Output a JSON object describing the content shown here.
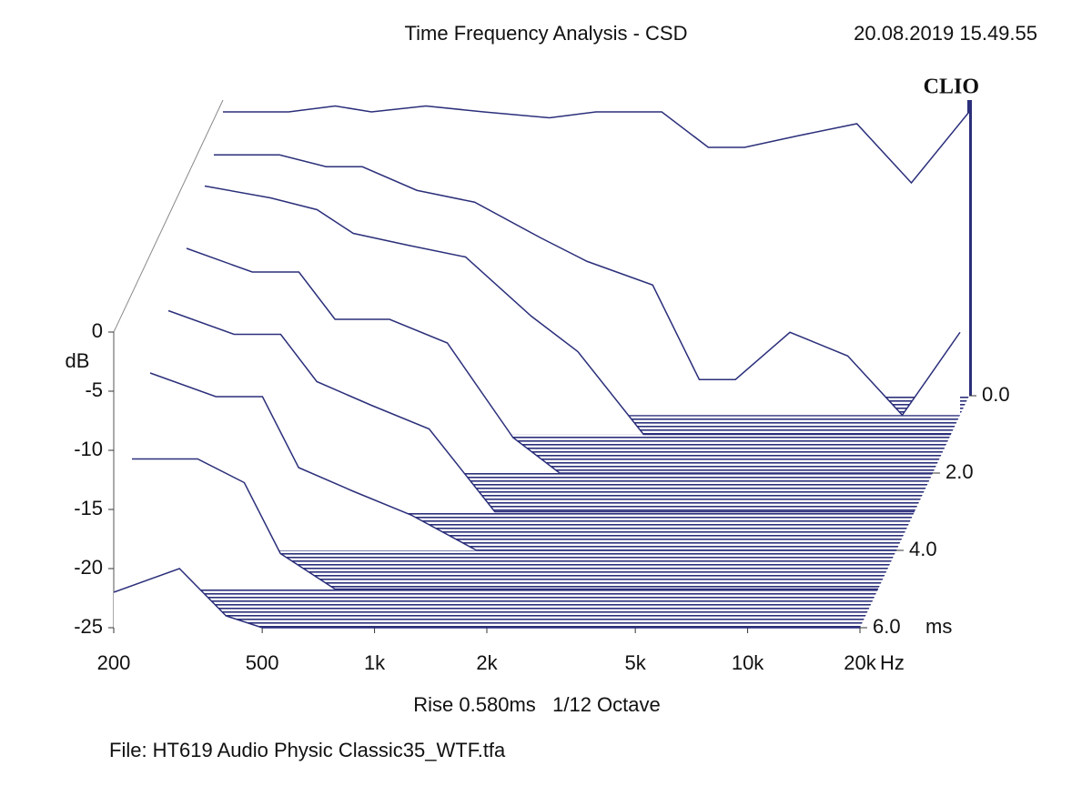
{
  "chart_data": {
    "type": "waterfall",
    "title": "Time Frequency Analysis - CSD",
    "date": "20.08.2019 15.49.55",
    "brand": "CLIO",
    "subtitle": "Rise 0.580ms   1/12 Octave",
    "file": "File: HT619 Audio Physic Classic35_WTF.tfa",
    "y_label": "dB",
    "x_unit": "Hz",
    "z_unit": "ms",
    "log_x": true,
    "color": "#2b2f7a",
    "xlim": [
      200,
      20000
    ],
    "xticks": [
      200,
      500,
      {
        "value": 1000,
        "label": "1k"
      },
      {
        "value": 2000,
        "label": "2k"
      },
      {
        "value": 5000,
        "label": "5k"
      },
      {
        "value": 10000,
        "label": "10k"
      },
      {
        "value": 20000,
        "label": "20k"
      }
    ],
    "ylim": [
      -25,
      0
    ],
    "yticks": [
      0,
      -5,
      -10,
      -15,
      -20,
      -25
    ],
    "zlim": [
      0,
      6
    ],
    "zticks": [
      {
        "value": 0,
        "label": "0.0"
      },
      {
        "value": 2,
        "label": "2.0"
      },
      {
        "value": 4,
        "label": "4.0"
      },
      {
        "value": 6,
        "label": "6.0"
      }
    ],
    "x": [
      200,
      300,
      400,
      500,
      700,
      1000,
      1500,
      2000,
      3000,
      4000,
      5000,
      7000,
      10000,
      14000,
      20000
    ],
    "slices": [
      {
        "t": 0,
        "values": [
          -1,
          -1,
          -0.5,
          -1,
          -0.5,
          -1,
          -1.5,
          -1,
          -1,
          -4,
          -4,
          -3,
          -2,
          -7,
          -1
        ]
      },
      {
        "t": 0.5,
        "values": [
          -3,
          -3,
          -4,
          -4,
          -6,
          -7,
          -10,
          -12,
          -14,
          -22,
          -22,
          -18,
          -20,
          -25,
          -18
        ]
      },
      {
        "t": 1,
        "values": [
          -4,
          -5,
          -6,
          -8,
          -9,
          -10,
          -15,
          -18,
          -25,
          -25,
          -25,
          -25,
          -25,
          -25,
          -25
        ]
      },
      {
        "t": 2,
        "values": [
          -6,
          -8,
          -8,
          -12,
          -12,
          -14,
          -22,
          -25,
          -25,
          -25,
          -25,
          -25,
          -25,
          -25,
          -25
        ]
      },
      {
        "t": 3,
        "values": [
          -8,
          -10,
          -10,
          -14,
          -16,
          -18,
          -25,
          -25,
          -25,
          -25,
          -25,
          -25,
          -25,
          -25,
          -25
        ]
      },
      {
        "t": 4,
        "values": [
          -10,
          -12,
          -12,
          -18,
          -20,
          -22,
          -25,
          -25,
          -25,
          -25,
          -25,
          -25,
          -25,
          -25,
          -25
        ]
      },
      {
        "t": 5,
        "values": [
          -14,
          -14,
          -16,
          -22,
          -25,
          -25,
          -25,
          -25,
          -25,
          -25,
          -25,
          -25,
          -25,
          -25,
          -25
        ]
      },
      {
        "t": 6,
        "values": [
          -22,
          -20,
          -24,
          -25,
          -25,
          -25,
          -25,
          -25,
          -25,
          -25,
          -25,
          -25,
          -25,
          -25,
          -25
        ]
      }
    ]
  }
}
